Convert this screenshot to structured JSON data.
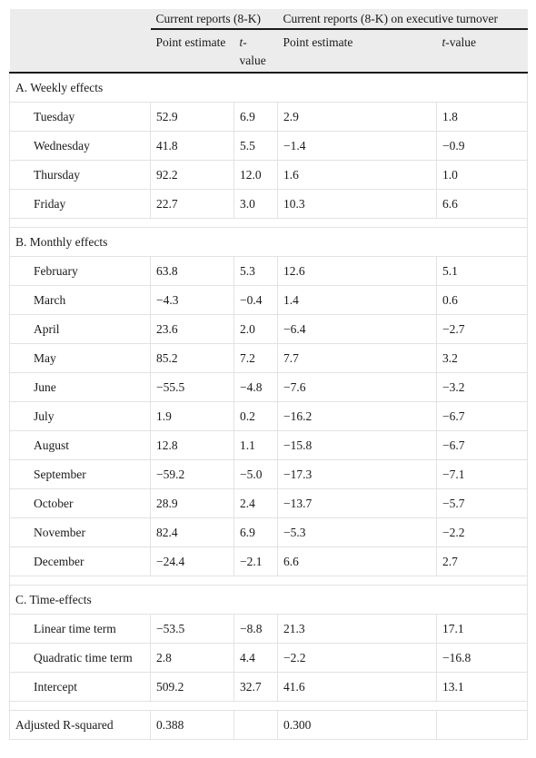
{
  "header": {
    "group1": "Current reports (8-K)",
    "group2": "Current reports (8-K) on executive turnover",
    "col_point": "Point estimate",
    "col_t_prefix": "t",
    "col_t_suffix": "-value"
  },
  "sections": [
    {
      "title": "A. Weekly effects",
      "rows": [
        {
          "label": "Tuesday",
          "v": [
            "52.9",
            "6.9",
            "2.9",
            "1.8"
          ]
        },
        {
          "label": "Wednesday",
          "v": [
            "41.8",
            "5.5",
            "−1.4",
            "−0.9"
          ]
        },
        {
          "label": "Thursday",
          "v": [
            "92.2",
            "12.0",
            "1.6",
            "1.0"
          ]
        },
        {
          "label": "Friday",
          "v": [
            "22.7",
            "3.0",
            "10.3",
            "6.6"
          ]
        }
      ]
    },
    {
      "title": "B. Monthly effects",
      "rows": [
        {
          "label": "February",
          "v": [
            "63.8",
            "5.3",
            "12.6",
            "5.1"
          ]
        },
        {
          "label": "March",
          "v": [
            "−4.3",
            "−0.4",
            "1.4",
            "0.6"
          ]
        },
        {
          "label": "April",
          "v": [
            "23.6",
            "2.0",
            "−6.4",
            "−2.7"
          ]
        },
        {
          "label": "May",
          "v": [
            "85.2",
            "7.2",
            "7.7",
            "3.2"
          ]
        },
        {
          "label": "June",
          "v": [
            "−55.5",
            "−4.8",
            "−7.6",
            "−3.2"
          ]
        },
        {
          "label": "July",
          "v": [
            "1.9",
            "0.2",
            "−16.2",
            "−6.7"
          ]
        },
        {
          "label": "August",
          "v": [
            "12.8",
            "1.1",
            "−15.8",
            "−6.7"
          ]
        },
        {
          "label": "September",
          "v": [
            "−59.2",
            "−5.0",
            "−17.3",
            "−7.1"
          ]
        },
        {
          "label": "October",
          "v": [
            "28.9",
            "2.4",
            "−13.7",
            "−5.7"
          ]
        },
        {
          "label": "November",
          "v": [
            "82.4",
            "6.9",
            "−5.3",
            "−2.2"
          ]
        },
        {
          "label": "December",
          "v": [
            "−24.4",
            "−2.1",
            "6.6",
            "2.7"
          ]
        }
      ]
    },
    {
      "title": "C. Time-effects",
      "rows": [
        {
          "label": "Linear time term",
          "v": [
            "−53.5",
            "−8.8",
            "21.3",
            "17.1"
          ]
        },
        {
          "label": "Quadratic time term",
          "v": [
            "2.8",
            "4.4",
            "−2.2",
            "−16.8"
          ],
          "wrap": true
        },
        {
          "label": "Intercept",
          "v": [
            "509.2",
            "32.7",
            "41.6",
            "13.1"
          ]
        }
      ]
    }
  ],
  "footer": {
    "label": "Adjusted R-squared",
    "v": [
      "0.388",
      "",
      "0.300",
      ""
    ]
  }
}
